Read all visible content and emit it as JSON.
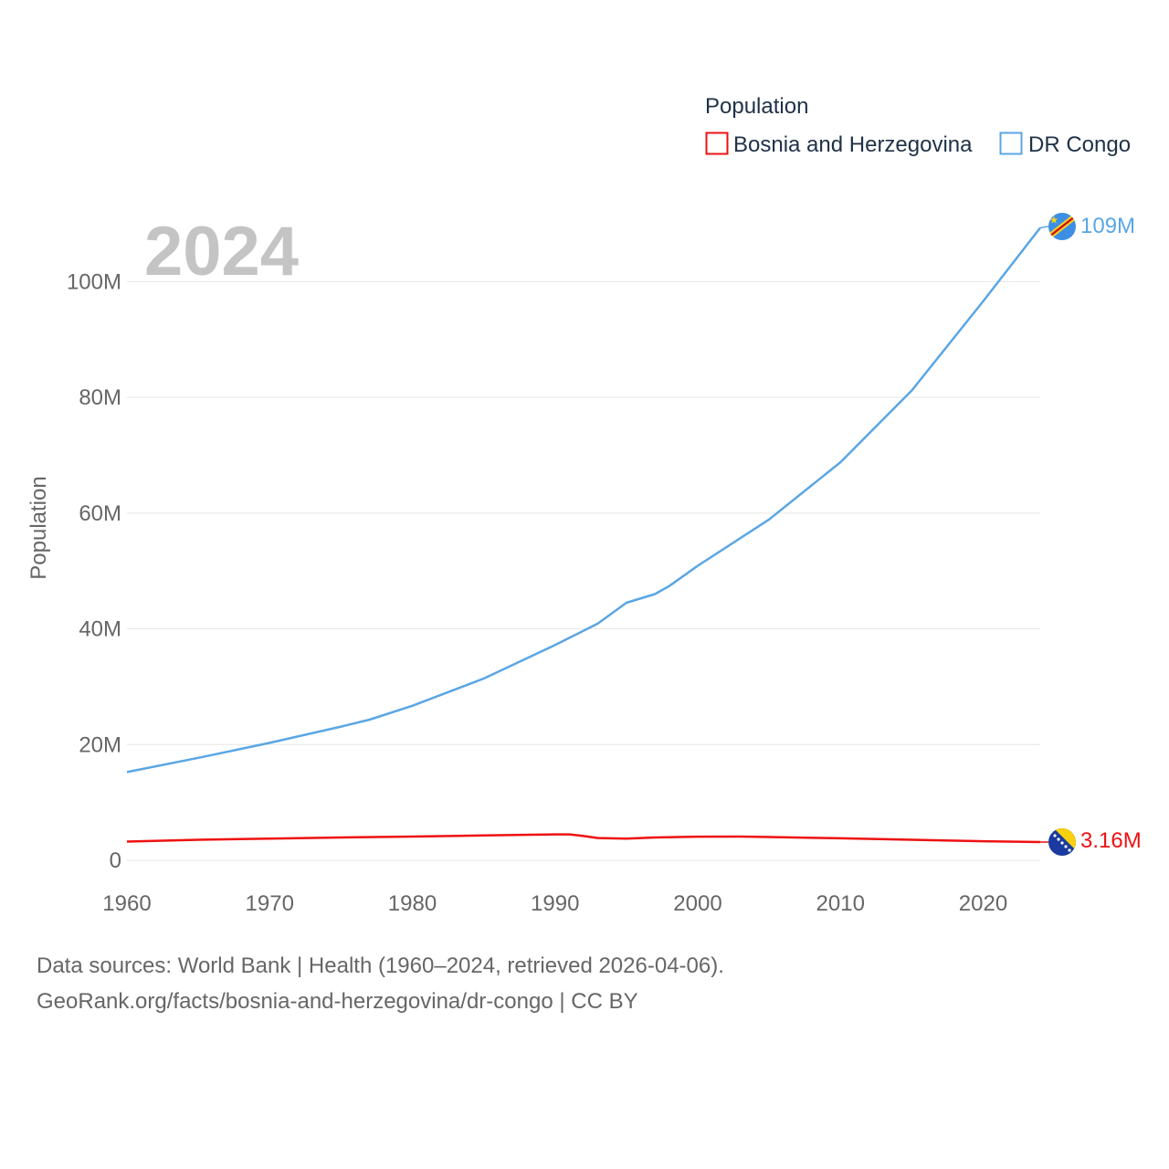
{
  "chart_data": {
    "type": "line",
    "year_label": "2024",
    "legend": {
      "title": "Population",
      "placement": "top-right",
      "items": [
        "Bosnia and Herzegovina",
        "DR Congo"
      ]
    },
    "ylabel": "Population",
    "xlabel": "",
    "xlim": [
      1960,
      2024
    ],
    "ylim": [
      0,
      110000000
    ],
    "x_ticks": [
      1960,
      1970,
      1980,
      1990,
      2000,
      2010,
      2020
    ],
    "y_ticks": [
      {
        "value": 0,
        "label": "0"
      },
      {
        "value": 20000000,
        "label": "20M"
      },
      {
        "value": 40000000,
        "label": "40M"
      },
      {
        "value": 60000000,
        "label": "60M"
      },
      {
        "value": 80000000,
        "label": "80M"
      },
      {
        "value": 100000000,
        "label": "100M"
      }
    ],
    "grid": "horizontal",
    "series": [
      {
        "name": "Bosnia and Herzegovina",
        "color": "#ee1111",
        "end_label": "3.16M",
        "flag": "bosnia-flag-icon",
        "points": [
          [
            1960,
            3230000
          ],
          [
            1965,
            3550000
          ],
          [
            1970,
            3750000
          ],
          [
            1975,
            3950000
          ],
          [
            1980,
            4100000
          ],
          [
            1985,
            4300000
          ],
          [
            1990,
            4480000
          ],
          [
            1991,
            4480000
          ],
          [
            1992,
            4200000
          ],
          [
            1993,
            3850000
          ],
          [
            1995,
            3750000
          ],
          [
            1997,
            3950000
          ],
          [
            2000,
            4080000
          ],
          [
            2003,
            4100000
          ],
          [
            2005,
            4030000
          ],
          [
            2010,
            3800000
          ],
          [
            2015,
            3550000
          ],
          [
            2020,
            3300000
          ],
          [
            2024,
            3160000
          ]
        ]
      },
      {
        "name": "DR Congo",
        "color": "#5aa6e4",
        "end_label": "109M",
        "flag": "dr-congo-flag-icon",
        "points": [
          [
            1960,
            15250000
          ],
          [
            1965,
            17700000
          ],
          [
            1970,
            20300000
          ],
          [
            1975,
            23100000
          ],
          [
            1977,
            24300000
          ],
          [
            1980,
            26700000
          ],
          [
            1985,
            31400000
          ],
          [
            1990,
            37200000
          ],
          [
            1993,
            40900000
          ],
          [
            1995,
            44500000
          ],
          [
            1997,
            46000000
          ],
          [
            1998,
            47400000
          ],
          [
            2000,
            50900000
          ],
          [
            2005,
            58900000
          ],
          [
            2010,
            68800000
          ],
          [
            2015,
            81200000
          ],
          [
            2020,
            96600000
          ],
          [
            2024,
            109300000
          ]
        ]
      }
    ]
  },
  "footer": {
    "line1": "Data sources: World Bank | Health (1960–2024, retrieved 2026-04-06).",
    "line2": "GeoRank.org/facts/bosnia-and-herzegovina/dr-congo | CC BY"
  }
}
